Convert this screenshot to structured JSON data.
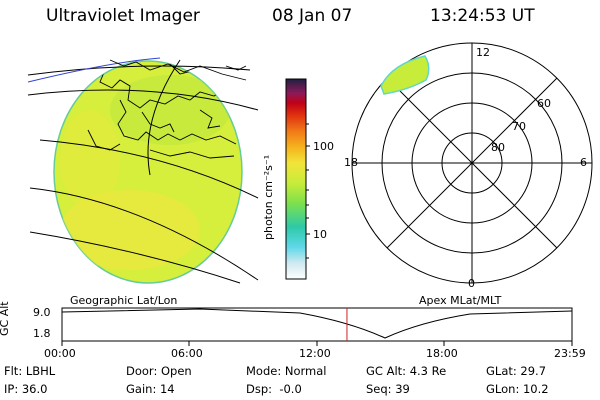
{
  "header": {
    "instrument": "Ultraviolet Imager",
    "date": "08 Jan 07",
    "time": "13:24:53 UT"
  },
  "map": {
    "caption": "Geographic Lat/Lon",
    "fill_color": "#d6ee3c"
  },
  "colorbar": {
    "unit": "photon cm⁻²s⁻¹",
    "tick_labels": [
      "100",
      "10"
    ]
  },
  "polar": {
    "caption": "Apex MLat/MLT",
    "mlt_labels": {
      "top": "12",
      "left": "18",
      "right": "6",
      "bottom": "0"
    },
    "lat_labels": [
      "60",
      "70",
      "80"
    ]
  },
  "timeline": {
    "ylabel": "GC Alt",
    "y_ticks": [
      "9.0",
      "1.8"
    ],
    "x_ticks": [
      "00:00",
      "06:00",
      "12:00",
      "18:00",
      "23:59"
    ],
    "current_time_hours": 13.41,
    "marker_color": "#cc2222"
  },
  "info": {
    "filt": "Flt: LBHL",
    "door": "Door: Open",
    "mode": "Mode: Normal",
    "gc_alt": "GC Alt: 4.3 Re",
    "glat": "GLat: 29.7",
    "ip": "IP: 36.0",
    "gain": "Gain: 14",
    "dsp": "Dsp:  -0.0",
    "seq": "Seq: 39",
    "glon": "GLon: 10.2"
  }
}
